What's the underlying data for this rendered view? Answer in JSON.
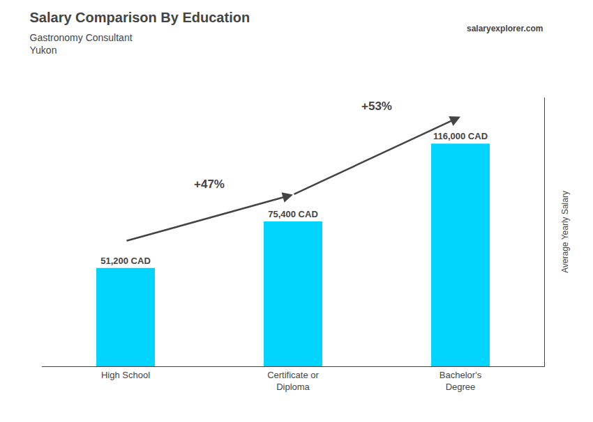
{
  "chart_data": {
    "type": "bar",
    "title": "Salary Comparison By Education",
    "subtitle": [
      "Gastronomy Consultant",
      "Yukon"
    ],
    "ylabel": "Average Yearly Salary",
    "categories": [
      "High School",
      "Certificate or\nDiploma",
      "Bachelor's\nDegree"
    ],
    "values": [
      51200,
      75400,
      116000
    ],
    "value_labels": [
      "51,200 CAD",
      "75,400 CAD",
      "116,000 CAD"
    ],
    "data_labels": true,
    "color": "#00d4ff",
    "ylim": [
      0,
      140000
    ],
    "tick_labels": "x",
    "grid": false,
    "annotations": [
      "+47%",
      "+53%",
      "salaryexplorer.com"
    ]
  }
}
